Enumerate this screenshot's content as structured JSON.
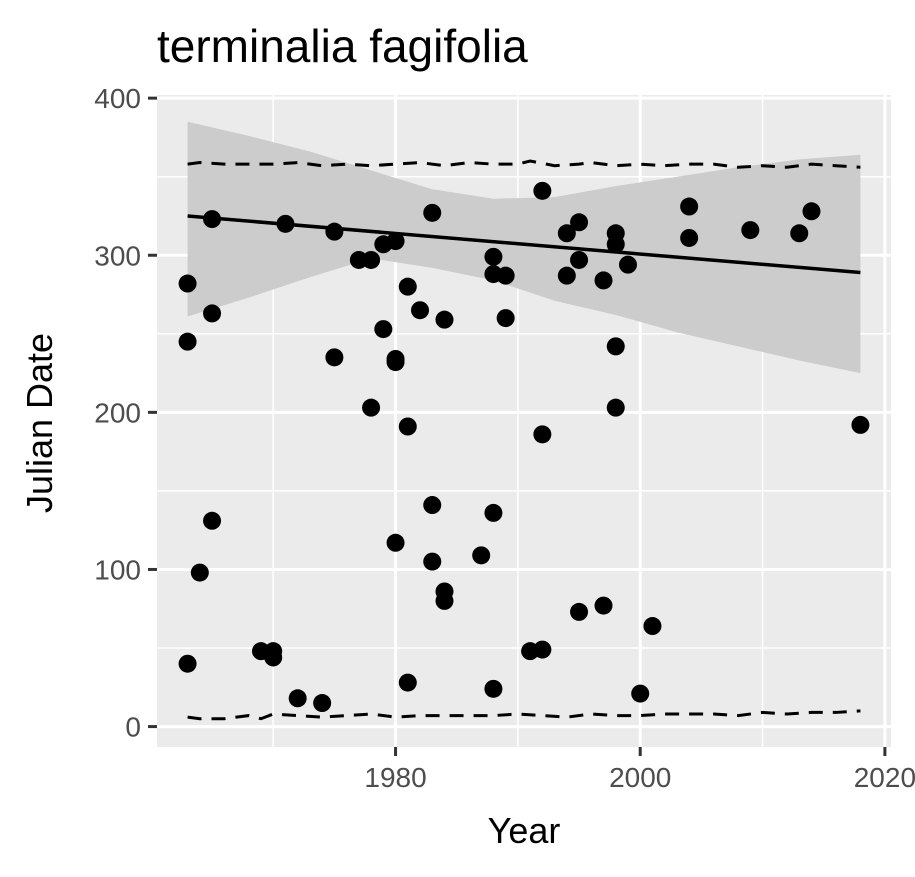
{
  "chart_data": {
    "type": "scatter",
    "title": "terminalia fagifolia",
    "xlabel": "Year",
    "ylabel": "Julian Date",
    "xlim": [
      1960.5,
      2020.5
    ],
    "ylim": [
      -13,
      402
    ],
    "x_ticks": [
      1980,
      2000,
      2020
    ],
    "y_ticks": [
      0,
      100,
      200,
      300,
      400
    ],
    "x_tick_labels": [
      "1980",
      "2000",
      "2020"
    ],
    "y_tick_labels": [
      "0",
      "100",
      "200",
      "300",
      "400"
    ],
    "grid": true,
    "legend": "none",
    "colors": {
      "panel": "#ebebeb",
      "grid": "#ffffff",
      "points": "#000000",
      "ribbon": "#cccccc",
      "tick_text": "#4d4d4d"
    },
    "points": [
      {
        "x": 1963,
        "y": 282
      },
      {
        "x": 1963,
        "y": 245
      },
      {
        "x": 1963,
        "y": 40
      },
      {
        "x": 1964,
        "y": 98
      },
      {
        "x": 1965,
        "y": 323
      },
      {
        "x": 1965,
        "y": 263
      },
      {
        "x": 1965,
        "y": 131
      },
      {
        "x": 1969,
        "y": 48
      },
      {
        "x": 1970,
        "y": 48
      },
      {
        "x": 1970,
        "y": 44
      },
      {
        "x": 1971,
        "y": 320
      },
      {
        "x": 1972,
        "y": 18
      },
      {
        "x": 1974,
        "y": 15
      },
      {
        "x": 1975,
        "y": 315
      },
      {
        "x": 1975,
        "y": 235
      },
      {
        "x": 1977,
        "y": 297
      },
      {
        "x": 1978,
        "y": 297
      },
      {
        "x": 1978,
        "y": 203
      },
      {
        "x": 1979,
        "y": 307
      },
      {
        "x": 1979,
        "y": 253
      },
      {
        "x": 1980,
        "y": 309
      },
      {
        "x": 1980,
        "y": 234
      },
      {
        "x": 1980,
        "y": 232
      },
      {
        "x": 1980,
        "y": 117
      },
      {
        "x": 1981,
        "y": 280
      },
      {
        "x": 1981,
        "y": 191
      },
      {
        "x": 1981,
        "y": 28
      },
      {
        "x": 1982,
        "y": 265
      },
      {
        "x": 1983,
        "y": 327
      },
      {
        "x": 1983,
        "y": 141
      },
      {
        "x": 1983,
        "y": 105
      },
      {
        "x": 1984,
        "y": 259
      },
      {
        "x": 1984,
        "y": 86
      },
      {
        "x": 1984,
        "y": 80
      },
      {
        "x": 1987,
        "y": 109
      },
      {
        "x": 1988,
        "y": 299
      },
      {
        "x": 1988,
        "y": 288
      },
      {
        "x": 1988,
        "y": 136
      },
      {
        "x": 1988,
        "y": 24
      },
      {
        "x": 1989,
        "y": 287
      },
      {
        "x": 1989,
        "y": 260
      },
      {
        "x": 1991,
        "y": 48
      },
      {
        "x": 1992,
        "y": 341
      },
      {
        "x": 1992,
        "y": 186
      },
      {
        "x": 1992,
        "y": 49
      },
      {
        "x": 1994,
        "y": 314
      },
      {
        "x": 1994,
        "y": 287
      },
      {
        "x": 1995,
        "y": 321
      },
      {
        "x": 1995,
        "y": 297
      },
      {
        "x": 1995,
        "y": 73
      },
      {
        "x": 1997,
        "y": 284
      },
      {
        "x": 1997,
        "y": 77
      },
      {
        "x": 1998,
        "y": 314
      },
      {
        "x": 1998,
        "y": 307
      },
      {
        "x": 1998,
        "y": 242
      },
      {
        "x": 1998,
        "y": 203
      },
      {
        "x": 1999,
        "y": 294
      },
      {
        "x": 2000,
        "y": 21
      },
      {
        "x": 2001,
        "y": 64
      },
      {
        "x": 2004,
        "y": 331
      },
      {
        "x": 2004,
        "y": 311
      },
      {
        "x": 2009,
        "y": 316
      },
      {
        "x": 2013,
        "y": 314
      },
      {
        "x": 2014,
        "y": 328
      },
      {
        "x": 2018,
        "y": 192
      }
    ],
    "trend_line": {
      "x": [
        1963,
        2018
      ],
      "y": [
        325,
        289
      ]
    },
    "confidence_band": {
      "x": [
        1963,
        1968,
        1973,
        1978,
        1983,
        1988,
        1993,
        1998,
        2003,
        2008,
        2013,
        2018
      ],
      "upper": [
        385,
        376,
        366,
        354,
        342,
        336,
        337,
        344,
        350,
        356,
        361,
        364
      ],
      "lower": [
        261,
        273,
        286,
        298,
        292,
        284,
        271,
        262,
        251,
        242,
        233,
        225
      ]
    },
    "upper_dashed": {
      "x": [
        1963,
        1964,
        1966,
        1968,
        1970,
        1972,
        1974,
        1976,
        1978,
        1980,
        1982,
        1984,
        1986,
        1988,
        1990,
        1991,
        1993,
        1995,
        1996,
        1998,
        2000,
        2002,
        2004,
        2006,
        2008,
        2010,
        2012,
        2014,
        2016,
        2018
      ],
      "y": [
        358,
        359,
        358,
        358,
        358,
        359,
        357,
        358,
        357,
        358,
        359,
        357,
        359,
        358,
        358,
        360,
        357,
        358,
        359,
        357,
        358,
        357,
        358,
        358,
        356,
        357,
        356,
        358,
        357,
        356
      ]
    },
    "lower_dashed": {
      "x": [
        1963,
        1964,
        1966,
        1968,
        1969,
        1970,
        1972,
        1974,
        1976,
        1978,
        1980,
        1982,
        1984,
        1986,
        1988,
        1990,
        1992,
        1994,
        1996,
        1998,
        2000,
        2002,
        2004,
        2006,
        2008,
        2010,
        2012,
        2014,
        2016,
        2018
      ],
      "y": [
        6,
        5,
        5,
        7,
        5,
        8,
        7,
        6,
        7,
        8,
        6,
        7,
        7,
        7,
        7,
        8,
        7,
        6,
        8,
        7,
        7,
        8,
        8,
        8,
        7,
        9,
        8,
        9,
        9,
        10
      ]
    }
  }
}
